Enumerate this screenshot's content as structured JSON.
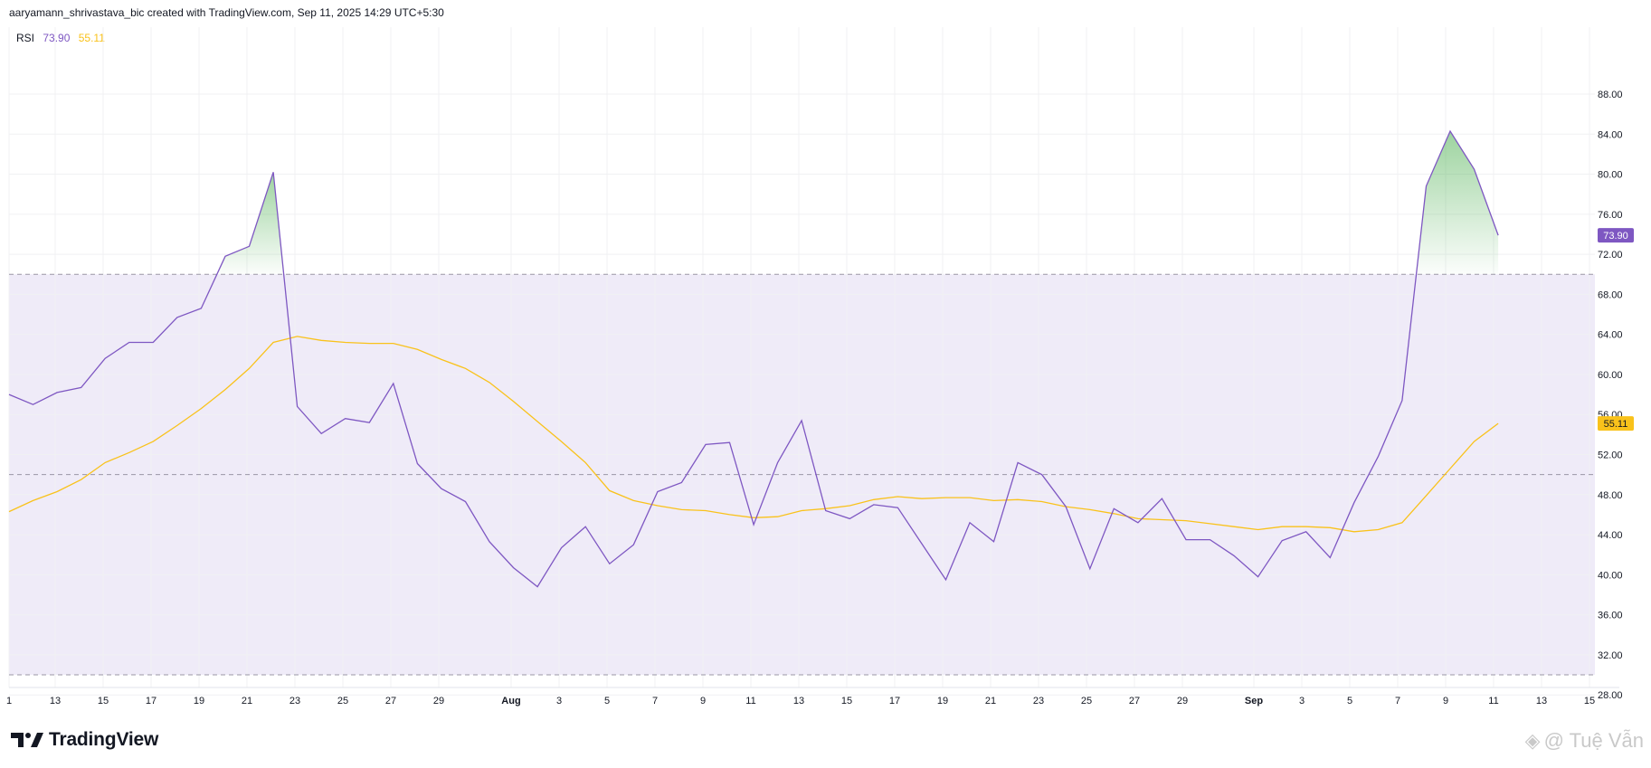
{
  "header": {
    "attribution": "aaryamann_shrivastava_bic created with TradingView.com, Sep 11, 2025 14:29 UTC+5:30"
  },
  "legend": {
    "name": "RSI",
    "rsi_value": "73.90",
    "ma_value": "55.11"
  },
  "badges": {
    "rsi": "73.90",
    "ma": "55.11"
  },
  "brand": {
    "name": "TradingView"
  },
  "watermark": {
    "text": "@ Tuệ Vẫn"
  },
  "colors": {
    "rsi_line": "#7e57c2",
    "ma_line": "#f9c21b",
    "band_fill": "#efebf8",
    "overbought_fill": "#4caf50",
    "grid": "#f0f1f3",
    "band_line": "#9b97a6"
  },
  "chart_data": {
    "type": "line",
    "title": "",
    "xlabel": "",
    "ylabel": "",
    "ylim": [
      26,
      92
    ],
    "y_ticks": [
      "28.00",
      "32.00",
      "36.00",
      "40.00",
      "44.00",
      "48.00",
      "52.00",
      "56.00",
      "60.00",
      "64.00",
      "68.00",
      "72.00",
      "76.00",
      "80.00",
      "84.00",
      "88.00"
    ],
    "x_tick_labels": [
      "1",
      "13",
      "15",
      "17",
      "19",
      "21",
      "23",
      "25",
      "27",
      "29",
      "Aug",
      "3",
      "5",
      "7",
      "9",
      "11",
      "13",
      "15",
      "17",
      "19",
      "21",
      "23",
      "25",
      "27",
      "29",
      "Sep",
      "3",
      "5",
      "7",
      "9",
      "11",
      "13",
      "15"
    ],
    "reference_lines": [
      70,
      50,
      30
    ],
    "band": [
      30,
      70
    ],
    "series": [
      {
        "key": "rsi",
        "values": [
          58.0,
          57.0,
          58.2,
          58.7,
          61.6,
          63.2,
          63.2,
          65.7,
          66.6,
          71.8,
          72.8,
          80.2,
          56.8,
          54.1,
          55.6,
          55.2,
          59.1,
          51.1,
          48.6,
          47.3,
          43.3,
          40.7,
          38.8,
          42.7,
          44.8,
          41.1,
          43.0,
          48.3,
          49.2,
          53.0,
          53.2,
          45.0,
          51.2,
          55.4,
          46.4,
          45.6,
          47.0,
          46.7,
          43.1,
          39.5,
          45.2,
          43.3,
          51.2,
          50.0,
          46.8,
          40.6,
          46.6,
          45.2,
          47.6,
          43.5,
          43.5,
          41.9,
          39.8,
          43.4,
          44.3,
          41.7,
          47.2,
          51.8,
          57.4,
          78.8,
          84.3,
          80.5,
          73.9
        ]
      },
      {
        "key": "ma",
        "values": [
          46.3,
          47.4,
          48.3,
          49.5,
          51.2,
          52.2,
          53.3,
          54.9,
          56.6,
          58.5,
          60.6,
          63.2,
          63.8,
          63.4,
          63.2,
          63.1,
          63.1,
          62.5,
          61.5,
          60.6,
          59.2,
          57.3,
          55.3,
          53.3,
          51.2,
          48.4,
          47.4,
          46.9,
          46.5,
          46.4,
          46.0,
          45.7,
          45.8,
          46.4,
          46.6,
          46.9,
          47.5,
          47.8,
          47.6,
          47.7,
          47.7,
          47.4,
          47.5,
          47.3,
          46.8,
          46.5,
          46.1,
          45.6,
          45.5,
          45.4,
          45.1,
          44.8,
          44.5,
          44.8,
          44.8,
          44.7,
          44.3,
          44.5,
          45.2,
          47.9,
          50.6,
          53.3,
          55.11
        ]
      }
    ]
  }
}
